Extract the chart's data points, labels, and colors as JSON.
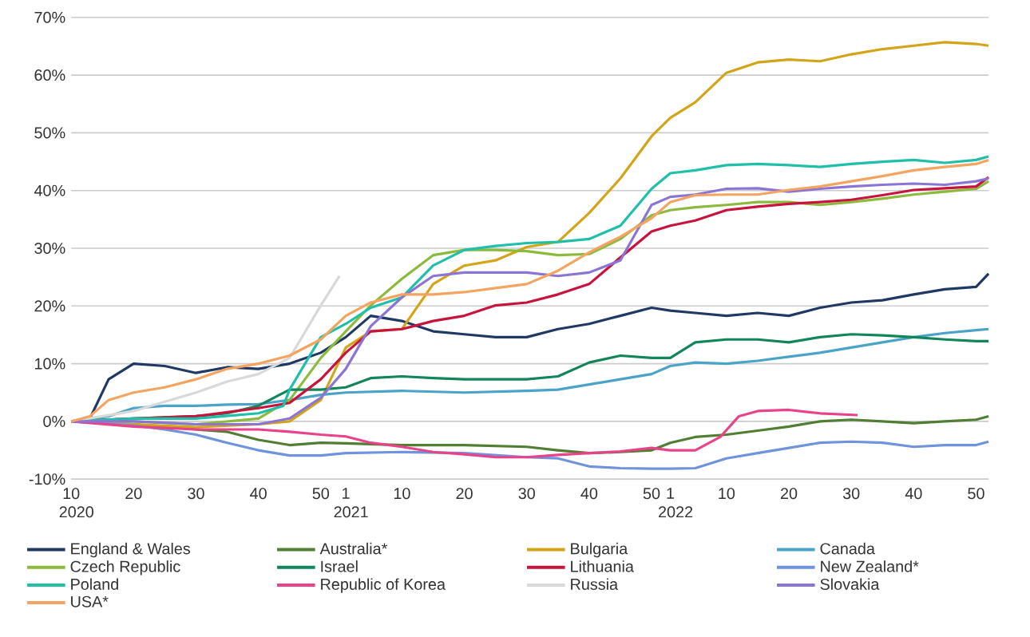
{
  "chart_data": {
    "type": "line",
    "grid": "y",
    "legend": "bottom",
    "xlim": [
      "2020-03-02",
      "2022-12-26"
    ],
    "ylim": [
      -10,
      70
    ],
    "xticks": [
      {
        "value": "2020-03-02",
        "label": "10"
      },
      {
        "value": "2020-05-11",
        "label": "20"
      },
      {
        "value": "2020-07-20",
        "label": "30"
      },
      {
        "value": "2020-09-28",
        "label": "40"
      },
      {
        "value": "2020-12-07",
        "label": "50"
      },
      {
        "value": "2021-01-04",
        "label": "1"
      },
      {
        "value": "2021-03-08",
        "label": "10"
      },
      {
        "value": "2021-05-17",
        "label": "20"
      },
      {
        "value": "2021-07-26",
        "label": "30"
      },
      {
        "value": "2021-10-04",
        "label": "40"
      },
      {
        "value": "2021-12-13",
        "label": "50"
      },
      {
        "value": "2022-01-03",
        "label": "1"
      },
      {
        "value": "2022-03-07",
        "label": "10"
      },
      {
        "value": "2022-05-16",
        "label": "20"
      },
      {
        "value": "2022-07-25",
        "label": "30"
      },
      {
        "value": "2022-10-03",
        "label": "40"
      },
      {
        "value": "2022-12-12",
        "label": "50"
      }
    ],
    "yticks": [
      {
        "value": -10,
        "label": "-10%"
      },
      {
        "value": 0,
        "label": "0%"
      },
      {
        "value": 10,
        "label": "10%"
      },
      {
        "value": 20,
        "label": "20%"
      },
      {
        "value": 30,
        "label": "30%"
      },
      {
        "value": 40,
        "label": "40%"
      },
      {
        "value": 50,
        "label": "50%"
      },
      {
        "value": 60,
        "label": "60%"
      },
      {
        "value": 70,
        "label": "70%"
      }
    ],
    "annotations": [
      "2020",
      "2021",
      "2022"
    ],
    "series": [
      {
        "name": "England & Wales",
        "color": "#1f3864",
        "x": [
          "2020-03-02",
          "2020-03-23",
          "2020-04-13",
          "2020-05-11",
          "2020-06-15",
          "2020-07-20",
          "2020-08-24",
          "2020-09-28",
          "2020-11-02",
          "2020-12-07",
          "2021-01-04",
          "2021-02-01",
          "2021-03-08",
          "2021-04-12",
          "2021-05-17",
          "2021-06-21",
          "2021-07-26",
          "2021-08-30",
          "2021-10-04",
          "2021-11-08",
          "2021-12-13",
          "2022-01-03",
          "2022-01-31",
          "2022-03-07",
          "2022-04-11",
          "2022-05-16",
          "2022-06-20",
          "2022-07-25",
          "2022-08-29",
          "2022-10-03",
          "2022-11-07",
          "2022-12-12",
          "2022-12-26"
        ],
        "values": [
          0,
          0.5,
          7.3,
          10,
          9.6,
          8.4,
          9.4,
          9.1,
          10,
          11.9,
          14.6,
          18.3,
          17.4,
          15.6,
          15.1,
          14.6,
          14.6,
          16,
          16.9,
          18.3,
          19.7,
          19.2,
          18.8,
          18.3,
          18.8,
          18.3,
          19.7,
          20.6,
          21,
          22,
          22.9,
          23.3,
          25.6
        ]
      },
      {
        "name": "Australia*",
        "color": "#507e32",
        "x": [
          "2020-03-02",
          "2020-05-11",
          "2020-06-15",
          "2020-07-20",
          "2020-08-24",
          "2020-09-28",
          "2020-11-02",
          "2020-12-07",
          "2021-01-04",
          "2021-03-08",
          "2021-05-17",
          "2021-07-26",
          "2021-08-30",
          "2021-10-04",
          "2021-11-08",
          "2021-12-13",
          "2022-01-03",
          "2022-01-31",
          "2022-03-07",
          "2022-04-11",
          "2022-05-16",
          "2022-06-20",
          "2022-07-25",
          "2022-08-29",
          "2022-10-03",
          "2022-11-07",
          "2022-12-12",
          "2022-12-26"
        ],
        "values": [
          0,
          -0.5,
          -0.9,
          -1.4,
          -1.8,
          -3.2,
          -4.1,
          -3.7,
          -3.8,
          -4.1,
          -4.1,
          -4.4,
          -5,
          -5.5,
          -5.3,
          -5,
          -3.7,
          -2.7,
          -2.3,
          -1.6,
          -0.9,
          0,
          0.3,
          0,
          -0.3,
          0,
          0.3,
          0.9
        ]
      },
      {
        "name": "Bulgaria",
        "color": "#d4a418",
        "x": [
          "2020-03-02",
          "2020-05-11",
          "2020-07-20",
          "2020-09-28",
          "2020-11-02",
          "2020-12-07",
          "2021-01-04",
          "2021-02-01",
          "2021-03-08",
          "2021-04-12",
          "2021-05-17",
          "2021-06-21",
          "2021-07-26",
          "2021-08-30",
          "2021-10-04",
          "2021-11-08",
          "2021-12-13",
          "2022-01-03",
          "2022-01-31",
          "2022-03-07",
          "2022-04-11",
          "2022-05-16",
          "2022-06-20",
          "2022-07-25",
          "2022-08-29",
          "2022-10-03",
          "2022-11-07",
          "2022-12-12",
          "2022-12-26"
        ],
        "values": [
          0,
          -0.5,
          -1,
          -0.5,
          0,
          3.7,
          12.8,
          15.6,
          16,
          23.8,
          27,
          27.9,
          30.2,
          31.1,
          36.1,
          42.1,
          49.4,
          52.6,
          55.3,
          60.4,
          62.2,
          62.7,
          62.4,
          63.6,
          64.5,
          65.1,
          65.7,
          65.4,
          65.1
        ]
      },
      {
        "name": "Canada",
        "color": "#4aa3c8",
        "x": [
          "2020-03-02",
          "2020-04-13",
          "2020-05-11",
          "2020-06-15",
          "2020-07-20",
          "2020-08-24",
          "2020-09-28",
          "2020-11-02",
          "2020-12-07",
          "2021-01-04",
          "2021-03-08",
          "2021-05-17",
          "2021-07-26",
          "2021-08-30",
          "2021-10-04",
          "2021-11-08",
          "2021-12-13",
          "2022-01-03",
          "2022-01-31",
          "2022-03-07",
          "2022-04-11",
          "2022-05-16",
          "2022-06-20",
          "2022-07-25",
          "2022-08-29",
          "2022-10-03",
          "2022-11-07",
          "2022-12-12",
          "2022-12-26"
        ],
        "values": [
          0,
          0.9,
          2.3,
          2.7,
          2.7,
          2.9,
          3,
          3.7,
          4.6,
          5,
          5.3,
          5,
          5.3,
          5.5,
          6.4,
          7.3,
          8.2,
          9.6,
          10.2,
          10,
          10.5,
          11.2,
          11.9,
          12.8,
          13.7,
          14.6,
          15.3,
          15.8,
          16
        ]
      },
      {
        "name": "Czech Republic",
        "color": "#8cba3c",
        "x": [
          "2020-03-02",
          "2020-05-11",
          "2020-07-20",
          "2020-09-28",
          "2020-11-02",
          "2020-12-07",
          "2021-01-04",
          "2021-02-01",
          "2021-03-08",
          "2021-04-12",
          "2021-05-17",
          "2021-06-21",
          "2021-07-26",
          "2021-08-30",
          "2021-10-04",
          "2021-11-08",
          "2021-12-13",
          "2022-01-03",
          "2022-01-31",
          "2022-03-07",
          "2022-04-11",
          "2022-05-16",
          "2022-06-20",
          "2022-07-25",
          "2022-08-29",
          "2022-10-03",
          "2022-11-07",
          "2022-12-12",
          "2022-12-26"
        ],
        "values": [
          0,
          0,
          -0.5,
          0.5,
          3.7,
          11,
          15.6,
          20.1,
          24.7,
          28.8,
          29.7,
          29.7,
          29.5,
          28.8,
          29,
          31.6,
          35.7,
          36.6,
          37.1,
          37.5,
          38,
          38,
          37.5,
          38,
          38.6,
          39.3,
          39.8,
          40.3,
          41.6
        ]
      },
      {
        "name": "Israel",
        "color": "#12855a",
        "x": [
          "2020-03-02",
          "2020-05-11",
          "2020-07-20",
          "2020-08-24",
          "2020-09-28",
          "2020-11-02",
          "2020-12-07",
          "2021-01-04",
          "2021-02-01",
          "2021-03-08",
          "2021-04-12",
          "2021-05-17",
          "2021-07-26",
          "2021-08-30",
          "2021-10-04",
          "2021-11-08",
          "2021-12-13",
          "2022-01-03",
          "2022-01-31",
          "2022-03-07",
          "2022-04-11",
          "2022-05-16",
          "2022-06-20",
          "2022-07-25",
          "2022-08-29",
          "2022-10-03",
          "2022-11-07",
          "2022-12-12",
          "2022-12-26"
        ],
        "values": [
          0,
          0.5,
          0.9,
          1.4,
          2.7,
          5.5,
          5.5,
          5.9,
          7.5,
          7.8,
          7.5,
          7.3,
          7.3,
          7.8,
          10.2,
          11.4,
          11,
          11,
          13.7,
          14.2,
          14.2,
          13.7,
          14.6,
          15.1,
          14.9,
          14.6,
          14.2,
          13.9,
          13.9
        ]
      },
      {
        "name": "Lithuania",
        "color": "#c8143c",
        "x": [
          "2020-03-02",
          "2020-05-11",
          "2020-07-20",
          "2020-09-28",
          "2020-11-02",
          "2020-12-07",
          "2021-01-04",
          "2021-02-01",
          "2021-03-08",
          "2021-04-12",
          "2021-05-17",
          "2021-06-21",
          "2021-07-26",
          "2021-08-30",
          "2021-10-04",
          "2021-11-08",
          "2021-12-13",
          "2022-01-03",
          "2022-01-31",
          "2022-03-07",
          "2022-04-11",
          "2022-05-16",
          "2022-06-20",
          "2022-07-25",
          "2022-08-29",
          "2022-10-03",
          "2022-11-07",
          "2022-12-12",
          "2022-12-26"
        ],
        "values": [
          0,
          0.5,
          0.9,
          2.3,
          3.2,
          7.3,
          11.9,
          15.6,
          16,
          17.4,
          18.3,
          20.1,
          20.6,
          22,
          23.8,
          28.4,
          32.9,
          33.9,
          34.8,
          36.6,
          37.2,
          37.7,
          38,
          38.4,
          39.2,
          40.1,
          40.4,
          40.7,
          42.3
        ]
      },
      {
        "name": "New Zealand*",
        "color": "#6f93dc",
        "x": [
          "2020-03-02",
          "2020-05-11",
          "2020-06-15",
          "2020-07-20",
          "2020-08-24",
          "2020-09-28",
          "2020-11-02",
          "2020-12-07",
          "2021-01-04",
          "2021-03-08",
          "2021-05-17",
          "2021-07-26",
          "2021-08-30",
          "2021-10-04",
          "2021-11-08",
          "2021-12-13",
          "2022-01-03",
          "2022-01-31",
          "2022-03-07",
          "2022-04-11",
          "2022-05-16",
          "2022-06-20",
          "2022-07-25",
          "2022-08-29",
          "2022-10-03",
          "2022-11-07",
          "2022-12-12",
          "2022-12-26"
        ],
        "values": [
          0,
          -0.7,
          -1.4,
          -2.3,
          -3.7,
          -5,
          -5.9,
          -5.9,
          -5.5,
          -5.3,
          -5.5,
          -6.2,
          -6.4,
          -7.8,
          -8.1,
          -8.2,
          -8.2,
          -8.1,
          -6.4,
          -5.5,
          -4.6,
          -3.7,
          -3.5,
          -3.7,
          -4.4,
          -4.1,
          -4.1,
          -3.5
        ]
      },
      {
        "name": "Poland",
        "color": "#1fbfaa",
        "x": [
          "2020-03-02",
          "2020-05-11",
          "2020-07-20",
          "2020-09-28",
          "2020-10-26",
          "2020-11-02",
          "2020-12-07",
          "2021-01-04",
          "2021-02-01",
          "2021-03-08",
          "2021-04-12",
          "2021-05-17",
          "2021-06-21",
          "2021-07-26",
          "2021-08-30",
          "2021-10-04",
          "2021-11-08",
          "2021-12-13",
          "2022-01-03",
          "2022-01-31",
          "2022-03-07",
          "2022-04-11",
          "2022-05-16",
          "2022-06-20",
          "2022-07-25",
          "2022-08-29",
          "2022-10-03",
          "2022-11-07",
          "2022-12-12",
          "2022-12-26"
        ],
        "values": [
          0,
          0.5,
          0.5,
          1.4,
          2.7,
          5.5,
          14.6,
          16.9,
          19.7,
          21.5,
          27,
          29.7,
          30.4,
          30.9,
          31.1,
          31.6,
          33.9,
          40.3,
          43,
          43.5,
          44.4,
          44.6,
          44.4,
          44.1,
          44.6,
          45,
          45.3,
          44.8,
          45.3,
          45.9
        ]
      },
      {
        "name": "Republic of Korea",
        "color": "#e8438a",
        "x": [
          "2020-03-02",
          "2020-05-11",
          "2020-07-20",
          "2020-09-28",
          "2020-11-02",
          "2020-12-07",
          "2021-01-04",
          "2021-02-01",
          "2021-03-08",
          "2021-04-12",
          "2021-05-17",
          "2021-06-21",
          "2021-07-26",
          "2021-08-30",
          "2021-10-04",
          "2021-11-08",
          "2021-12-13",
          "2022-01-03",
          "2022-01-31",
          "2022-02-28",
          "2022-03-21",
          "2022-04-11",
          "2022-05-16",
          "2022-06-20",
          "2022-08-01"
        ],
        "values": [
          0,
          -0.9,
          -1.4,
          -1.4,
          -1.8,
          -2.3,
          -2.6,
          -3.7,
          -4.4,
          -5.3,
          -5.7,
          -6.2,
          -6.2,
          -5.8,
          -5.5,
          -5.2,
          -4.6,
          -5,
          -5,
          -2.7,
          0.9,
          1.8,
          2,
          1.4,
          1.1
        ]
      },
      {
        "name": "Russia",
        "color": "#d9d9d9",
        "x": [
          "2020-03-02",
          "2020-05-11",
          "2020-07-20",
          "2020-08-24",
          "2020-09-28",
          "2020-11-02",
          "2020-12-07",
          "2020-12-28"
        ],
        "values": [
          0,
          1.8,
          5,
          6.9,
          8.2,
          11,
          20.1,
          25.2
        ]
      },
      {
        "name": "Slovakia",
        "color": "#8c74d4",
        "x": [
          "2020-03-02",
          "2020-05-11",
          "2020-07-20",
          "2020-09-28",
          "2020-11-02",
          "2020-12-07",
          "2021-01-04",
          "2021-02-01",
          "2021-03-08",
          "2021-04-12",
          "2021-05-17",
          "2021-06-21",
          "2021-07-26",
          "2021-08-30",
          "2021-10-04",
          "2021-11-08",
          "2021-12-13",
          "2022-01-03",
          "2022-01-31",
          "2022-03-07",
          "2022-04-11",
          "2022-05-16",
          "2022-06-20",
          "2022-07-25",
          "2022-08-29",
          "2022-10-03",
          "2022-11-07",
          "2022-12-12",
          "2022-12-26"
        ],
        "values": [
          0,
          0,
          -0.5,
          -0.5,
          0.5,
          4.1,
          9.1,
          16.5,
          21.5,
          25.2,
          25.8,
          25.8,
          25.8,
          25.2,
          25.8,
          27.9,
          37.5,
          38.9,
          39.3,
          40.3,
          40.4,
          39.8,
          40.3,
          40.7,
          41,
          41.2,
          41,
          41.6,
          42.1
        ]
      },
      {
        "name": "USA*",
        "color": "#f4a460",
        "x": [
          "2020-03-02",
          "2020-03-23",
          "2020-04-13",
          "2020-05-11",
          "2020-06-15",
          "2020-07-20",
          "2020-08-24",
          "2020-09-28",
          "2020-11-02",
          "2020-12-07",
          "2021-01-04",
          "2021-02-01",
          "2021-03-08",
          "2021-04-12",
          "2021-05-17",
          "2021-06-21",
          "2021-07-26",
          "2021-08-30",
          "2021-10-04",
          "2021-11-08",
          "2021-12-13",
          "2022-01-03",
          "2022-01-31",
          "2022-03-07",
          "2022-04-11",
          "2022-05-16",
          "2022-06-20",
          "2022-07-25",
          "2022-08-29",
          "2022-10-03",
          "2022-11-07",
          "2022-12-12",
          "2022-12-26"
        ],
        "values": [
          0,
          0.9,
          3.7,
          5,
          5.9,
          7.3,
          9.1,
          10,
          11.4,
          14.2,
          18.3,
          20.6,
          22,
          22,
          22.4,
          23.1,
          23.8,
          26.1,
          29.3,
          32,
          35.2,
          38,
          39.2,
          39.3,
          39.3,
          40.1,
          40.7,
          41.6,
          42.5,
          43.5,
          44.1,
          44.6,
          45.3
        ]
      }
    ]
  }
}
